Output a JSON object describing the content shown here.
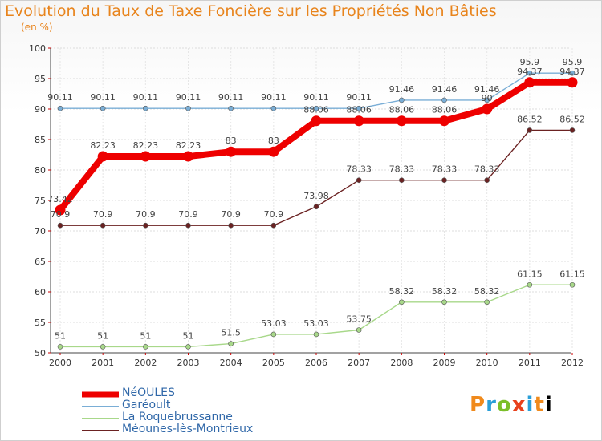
{
  "chart_data": {
    "type": "line",
    "title": "Evolution du Taux de Taxe Foncière sur les Propriétés Non Bâties",
    "subtitle": "(en %)",
    "categories": [
      "2000",
      "2001",
      "2002",
      "2003",
      "2004",
      "2005",
      "2006",
      "2007",
      "2008",
      "2009",
      "2010",
      "2011",
      "2012"
    ],
    "ylim": [
      50,
      100
    ],
    "yticks": [
      50,
      55,
      60,
      65,
      70,
      75,
      80,
      85,
      90,
      95,
      100
    ],
    "series": [
      {
        "name": "Méounes-lès-Montrieux",
        "color": "#6b2222",
        "values": [
          70.9,
          70.9,
          70.9,
          70.9,
          70.9,
          70.9,
          73.98,
          78.33,
          78.33,
          78.33,
          78.33,
          86.52,
          86.52
        ],
        "labels": [
          "70.9",
          "70.9",
          "70.9",
          "70.9",
          "70.9",
          "70.9",
          "73.98",
          "78.33",
          "78.33",
          "78.33",
          "78.33",
          "86.52",
          "86.52"
        ]
      },
      {
        "name": "La Roquebrussanne",
        "color": "#a8d88a",
        "values": [
          51,
          51,
          51,
          51,
          51.5,
          53.03,
          53.03,
          53.75,
          58.32,
          58.32,
          58.32,
          61.15,
          61.15
        ],
        "labels": [
          "51",
          "51",
          "51",
          "51",
          "51.5",
          "53.03",
          "53.03",
          "53.75",
          "58.32",
          "58.32",
          "58.32",
          "61.15",
          "61.15"
        ]
      },
      {
        "name": "Garéoult",
        "color": "#7aaed6",
        "values": [
          90.11,
          90.11,
          90.11,
          90.11,
          90.11,
          90.11,
          90.11,
          90.11,
          91.46,
          91.46,
          91.46,
          95.9,
          95.9
        ],
        "labels": [
          "90.11",
          "90.11",
          "90.11",
          "90.11",
          "90.11",
          "90.11",
          "90.11",
          "90.11",
          "91.46",
          "91.46",
          "91.46",
          "95.9",
          "95.9"
        ]
      },
      {
        "name": "NéOULES",
        "color": "#ee0000",
        "values": [
          73.42,
          82.23,
          82.23,
          82.23,
          83,
          83,
          88.06,
          88.06,
          88.06,
          88.06,
          90,
          94.37,
          94.37
        ],
        "labels": [
          "73.42",
          "82.23",
          "82.23",
          "82.23",
          "83",
          "83",
          "88.06",
          "88.06",
          "88.06",
          "88.06",
          "90",
          "94.37",
          "94.37"
        ]
      }
    ],
    "legend_order": [
      "NéOULES",
      "Garéoult",
      "La Roquebrussanne",
      "Méounes-lès-Montrieux"
    ]
  },
  "brand": [
    "P",
    "r",
    "o",
    "x",
    "i",
    "t",
    "i"
  ]
}
